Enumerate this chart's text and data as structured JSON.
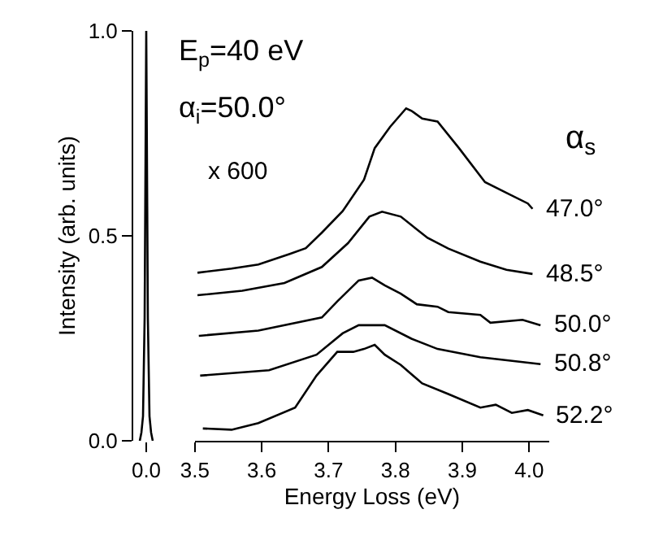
{
  "chart_data": [
    {
      "type": "line",
      "ylabel": "Intensity (arb. units)",
      "categories": [
        null,
        null,
        null,
        null,
        "0.0",
        null,
        null,
        null,
        null
      ],
      "values": [
        0.0,
        0.02,
        0.06,
        0.3,
        1.0,
        0.3,
        0.06,
        0.02,
        0.0
      ],
      "color": "#000000",
      "ylim": [
        0,
        1.0
      ],
      "yticks": [
        {
          "value": 0,
          "label": "0.0"
        },
        {
          "value": 0.5,
          "label": "0.5"
        },
        {
          "value": 1,
          "label": "1.0"
        }
      ],
      "marker": "none",
      "line_style": "solid"
    },
    {
      "type": "line",
      "xlabel": "Energy Loss (eV)",
      "annotations": [
        "E$_{p}$=40 eV",
        "α$_{i}$=50.0°",
        "x 600",
        "α$_{s}$"
      ],
      "series": [
        {
          "name": "47.0°",
          "color": "#000000",
          "x": [
            3.504,
            3.555,
            3.595,
            3.642,
            3.666,
            3.69,
            3.721,
            3.753,
            3.769,
            3.792,
            3.816,
            3.824,
            3.84,
            3.863,
            3.895,
            3.934,
            3.966,
            3.998,
            4.005
          ],
          "values": [
            0.41,
            0.42,
            0.43,
            0.456,
            0.47,
            0.508,
            0.56,
            0.637,
            0.714,
            0.766,
            0.811,
            0.805,
            0.786,
            0.779,
            0.714,
            0.631,
            0.605,
            0.579,
            0.566
          ]
        },
        {
          "name": "48.5°",
          "color": "#000000",
          "x": [
            3.504,
            3.571,
            3.634,
            3.69,
            3.729,
            3.761,
            3.78,
            3.808,
            3.848,
            3.879,
            3.927,
            3.966,
            4.005
          ],
          "values": [
            0.355,
            0.366,
            0.385,
            0.424,
            0.482,
            0.547,
            0.559,
            0.547,
            0.495,
            0.469,
            0.437,
            0.417,
            0.407
          ]
        },
        {
          "name": "50.0°",
          "color": "#000000",
          "x": [
            3.506,
            3.595,
            3.69,
            3.713,
            3.745,
            3.765,
            3.784,
            3.808,
            3.832,
            3.863,
            3.879,
            3.927,
            3.942,
            3.99,
            4.017
          ],
          "values": [
            0.256,
            0.269,
            0.301,
            0.34,
            0.391,
            0.398,
            0.379,
            0.359,
            0.333,
            0.327,
            0.314,
            0.307,
            0.288,
            0.295,
            0.282
          ]
        },
        {
          "name": "50.8°",
          "color": "#000000",
          "x": [
            3.508,
            3.611,
            3.682,
            3.721,
            3.745,
            3.784,
            3.824,
            3.863,
            3.927,
            4.017
          ],
          "values": [
            0.159,
            0.172,
            0.21,
            0.262,
            0.282,
            0.282,
            0.249,
            0.224,
            0.204,
            0.187
          ]
        },
        {
          "name": "52.2°",
          "color": "#000000",
          "x": [
            3.512,
            3.555,
            3.595,
            3.65,
            3.682,
            3.713,
            3.737,
            3.753,
            3.769,
            3.784,
            3.808,
            3.84,
            3.879,
            3.927,
            3.95,
            3.974,
            3.998,
            4.021
          ],
          "values": [
            0.03,
            0.027,
            0.043,
            0.081,
            0.159,
            0.217,
            0.217,
            0.224,
            0.234,
            0.21,
            0.185,
            0.14,
            0.114,
            0.081,
            0.088,
            0.068,
            0.075,
            0.062
          ]
        }
      ],
      "xlim": [
        3.5,
        4.03
      ],
      "xticks": [
        3.5,
        3.6,
        3.7,
        3.8,
        3.9,
        {
          "value": 4.0,
          "label": "4.0"
        }
      ],
      "ylim": [
        0,
        1.0
      ],
      "tick_labels": "x",
      "marker": "none",
      "line_style": "solid"
    }
  ]
}
